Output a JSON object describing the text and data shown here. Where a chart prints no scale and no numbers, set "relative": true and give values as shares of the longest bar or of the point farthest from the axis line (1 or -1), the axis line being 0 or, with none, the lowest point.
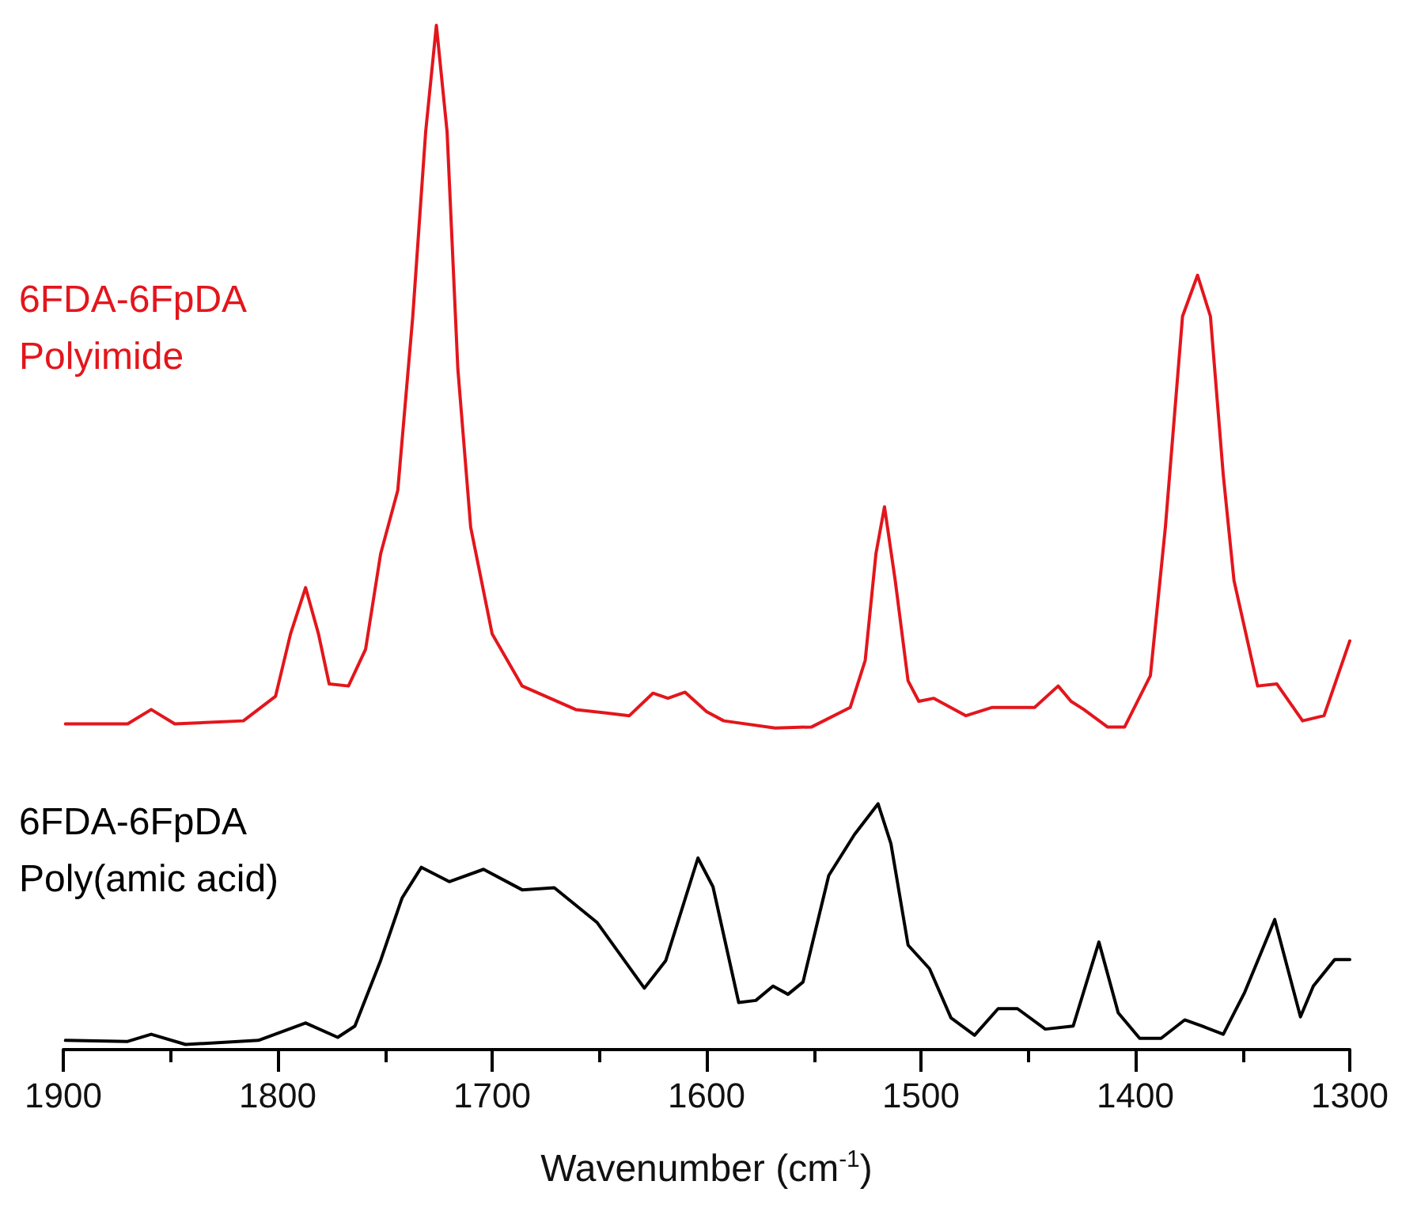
{
  "chart_data": {
    "type": "line",
    "relative": true,
    "xlabel": "Wavenumber (cm$^{-1}$)",
    "xlim": [
      1900,
      1300
    ],
    "xticks": [
      1900,
      1800,
      1700,
      1600,
      1500,
      1400,
      1300
    ],
    "grid": false,
    "legend": false,
    "marker": "none",
    "line_style": "solid",
    "tick_labels": "x",
    "series": [
      {
        "name": "6FDA-6FpDA\nPolyimide",
        "color": "#e3161c",
        "x": [
          1899,
          1870,
          1859,
          1848,
          1816,
          1801,
          1794,
          1787,
          1781,
          1776,
          1767,
          1759,
          1752,
          1744,
          1737,
          1731,
          1726,
          1721,
          1716,
          1710,
          1700,
          1686,
          1661,
          1636,
          1625,
          1618,
          1610,
          1600,
          1592,
          1568,
          1551,
          1533,
          1526,
          1521,
          1517,
          1512,
          1506,
          1501,
          1494,
          1479,
          1467,
          1447,
          1436,
          1430,
          1424,
          1413,
          1405,
          1393,
          1386,
          1378,
          1371,
          1365,
          1359,
          1354,
          1343,
          1334,
          1322,
          1312,
          1300
        ],
        "values": [
          0.318,
          0.318,
          0.332,
          0.318,
          0.321,
          0.345,
          0.406,
          0.451,
          0.406,
          0.357,
          0.355,
          0.391,
          0.484,
          0.546,
          0.716,
          0.896,
          1,
          0.896,
          0.665,
          0.51,
          0.406,
          0.355,
          0.332,
          0.326,
          0.348,
          0.343,
          0.349,
          0.33,
          0.321,
          0.314,
          0.315,
          0.334,
          0.38,
          0.484,
          0.53,
          0.458,
          0.36,
          0.34,
          0.343,
          0.326,
          0.334,
          0.334,
          0.355,
          0.34,
          0.332,
          0.315,
          0.315,
          0.365,
          0.51,
          0.716,
          0.756,
          0.716,
          0.561,
          0.458,
          0.355,
          0.357,
          0.321,
          0.326,
          0.399
        ]
      },
      {
        "name": "6FDA-6FpDA\nPoly(amic acid)",
        "color": "#000000",
        "x": [
          1899,
          1870,
          1859,
          1843,
          1809,
          1787,
          1772,
          1764,
          1752,
          1742,
          1733,
          1720,
          1704,
          1686,
          1671,
          1651,
          1629,
          1619,
          1604,
          1597,
          1585,
          1577,
          1569,
          1562,
          1555,
          1543,
          1531,
          1520,
          1514,
          1506,
          1496,
          1486,
          1475,
          1464,
          1455,
          1442,
          1429,
          1417,
          1408,
          1398,
          1388,
          1377,
          1369,
          1359,
          1349,
          1335,
          1323,
          1317,
          1307,
          1300
        ],
        "values": [
          0.009,
          0.008,
          0.015,
          0.005,
          0.009,
          0.026,
          0.012,
          0.023,
          0.087,
          0.148,
          0.178,
          0.164,
          0.176,
          0.156,
          0.158,
          0.124,
          0.06,
          0.087,
          0.187,
          0.159,
          0.046,
          0.048,
          0.062,
          0.054,
          0.066,
          0.17,
          0.21,
          0.24,
          0.201,
          0.102,
          0.079,
          0.031,
          0.014,
          0.04,
          0.04,
          0.02,
          0.023,
          0.105,
          0.036,
          0.011,
          0.011,
          0.029,
          0.023,
          0.015,
          0.056,
          0.127,
          0.032,
          0.062,
          0.088,
          0.088
        ]
      }
    ]
  }
}
